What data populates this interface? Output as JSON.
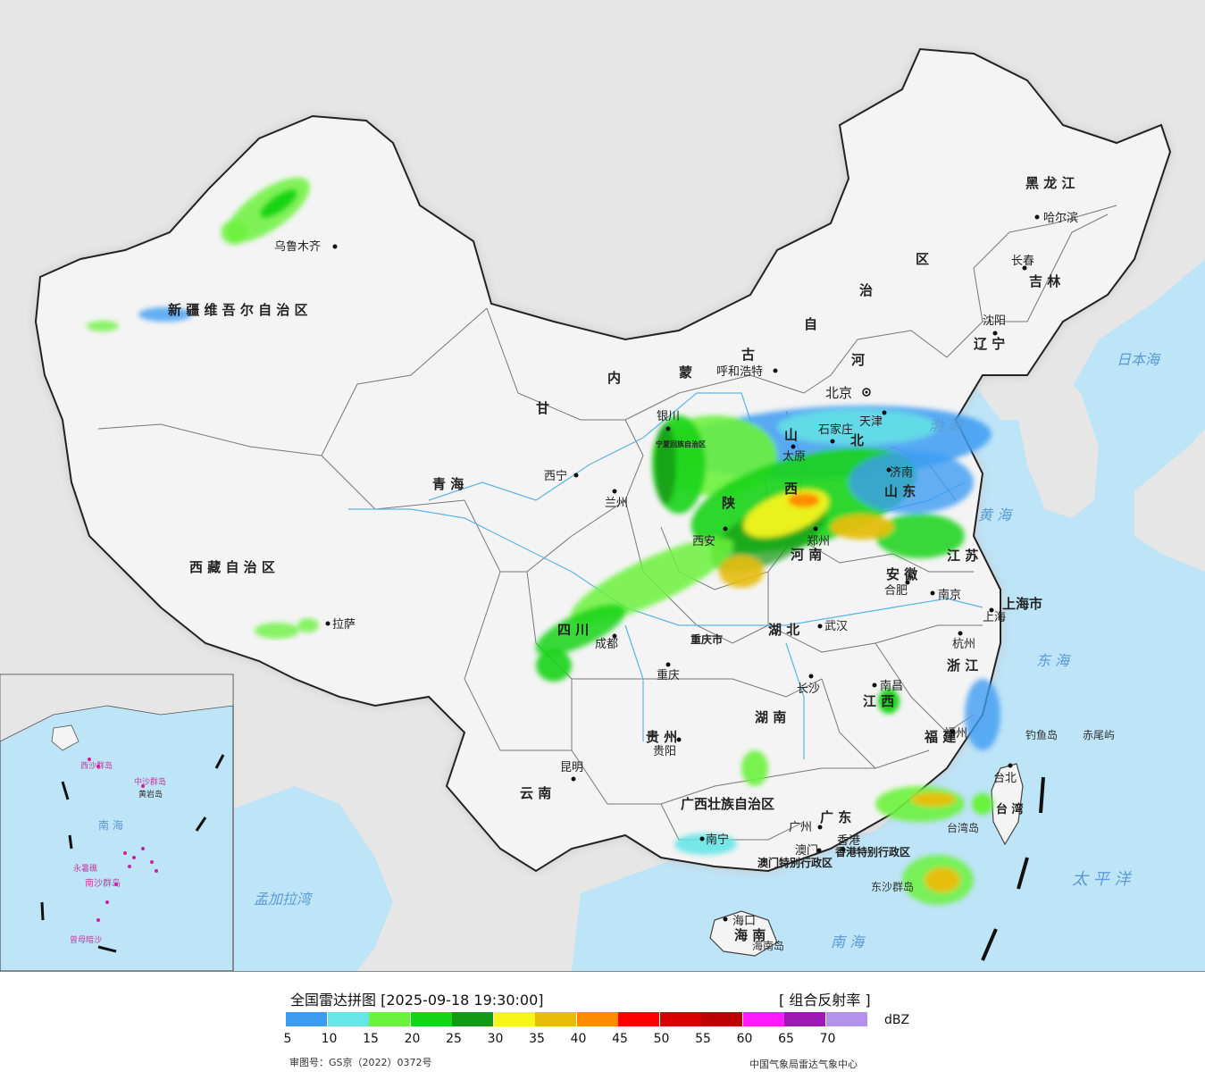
{
  "legend": {
    "title": "全国雷达拼图 [2025-09-18 19:30:00]",
    "product": "[ 组合反射率 ]",
    "unit": "dBZ",
    "colors": [
      "#3d9cf2",
      "#66e6e6",
      "#6bf23d",
      "#18d418",
      "#139913",
      "#f5f51a",
      "#e6be0a",
      "#ff8c00",
      "#ff0000",
      "#d90000",
      "#bf0000",
      "#ff1aff",
      "#9a1ab3",
      "#b491ed"
    ],
    "ticks": [
      "5",
      "10",
      "15",
      "20",
      "25",
      "30",
      "35",
      "40",
      "45",
      "50",
      "55",
      "60",
      "65",
      "70"
    ],
    "approval": "审图号：GS京（2022）0372号",
    "credit": "中国气象局雷达气象中心"
  },
  "regions": [
    {
      "name": "新疆维吾尔自治区",
      "label": "新  疆  维  吾  尔  自  治  区"
    },
    {
      "name": "西藏自治区",
      "label": "西  藏  自  治  区"
    },
    {
      "name": "青海",
      "label": "青          海"
    },
    {
      "name": "甘肃",
      "label": "甘"
    },
    {
      "name": "内蒙古自治区-内",
      "label": "内"
    },
    {
      "name": "内蒙古自治区-蒙",
      "label": "蒙"
    },
    {
      "name": "内蒙古自治区-古",
      "label": "古"
    },
    {
      "name": "内蒙古自治区-自",
      "label": "自"
    },
    {
      "name": "内蒙古自治区-治",
      "label": "治"
    },
    {
      "name": "内蒙古自治区-区",
      "label": "区"
    },
    {
      "name": "黑龙江",
      "label": "黑  龙  江"
    },
    {
      "name": "吉林",
      "label": "吉  林"
    },
    {
      "name": "辽宁",
      "label": "辽  宁"
    },
    {
      "name": "河北",
      "label": "河"
    },
    {
      "name": "北",
      "label": "北"
    },
    {
      "name": "山西-山",
      "label": "山"
    },
    {
      "name": "山西-西",
      "label": "西"
    },
    {
      "name": "山东",
      "label": "山  东"
    },
    {
      "name": "陕西",
      "label": "陕"
    },
    {
      "name": "河南",
      "label": "河    南"
    },
    {
      "name": "宁夏",
      "label": "宁夏回族自治区"
    },
    {
      "name": "四川",
      "label": "四    川"
    },
    {
      "name": "重庆市",
      "label": "重庆市"
    },
    {
      "name": "湖北",
      "label": "湖    北"
    },
    {
      "name": "安徽",
      "label": "安  徽"
    },
    {
      "name": "江苏",
      "label": "江  苏"
    },
    {
      "name": "上海市",
      "label": "上海市"
    },
    {
      "name": "浙江",
      "label": "浙  江"
    },
    {
      "name": "湖南",
      "label": "湖    南"
    },
    {
      "name": "江西",
      "label": "江    西"
    },
    {
      "name": "福建",
      "label": "福    建"
    },
    {
      "name": "贵州",
      "label": "贵  州"
    },
    {
      "name": "云南",
      "label": "云    南"
    },
    {
      "name": "广西壮族自治区",
      "label": "广西壮族自治区"
    },
    {
      "name": "广东",
      "label": "广    东"
    },
    {
      "name": "海南",
      "label": "海    南"
    },
    {
      "name": "台湾",
      "label": "台  湾"
    },
    {
      "name": "香港特别行政区",
      "label": "香港特别行政区"
    },
    {
      "name": "澳门特别行政区",
      "label": "澳门特别行政区"
    }
  ],
  "cities": [
    "乌鲁木齐",
    "拉萨",
    "西宁",
    "兰州",
    "银川",
    "呼和浩特",
    "北京",
    "天津",
    "石家庄",
    "太原",
    "济南",
    "西安",
    "郑州",
    "合肥",
    "南京",
    "上海",
    "杭州",
    "武汉",
    "成都",
    "重庆",
    "长沙",
    "南昌",
    "福州",
    "贵阳",
    "昆明",
    "南宁",
    "广州",
    "香港",
    "澳门",
    "海口",
    "台北",
    "哈尔滨",
    "长春",
    "沈阳"
  ],
  "seas": {
    "japan_sea": "日本海",
    "bohai": "渤  海",
    "yellow_sea": "黄  海",
    "east_sea": "东  海",
    "pacific": "太  平  洋",
    "south_sea": "南      海",
    "bengal": "孟加拉湾"
  },
  "islands": {
    "diaoyu": "钓鱼岛",
    "chiwei": "赤尾屿",
    "taiwan_island": "台湾岛",
    "hainan_island": "海南岛",
    "dongsha": "东沙群岛"
  },
  "inset": {
    "south_sea": "南  海",
    "zhongsha": "中沙群岛",
    "xisha": "西沙群岛",
    "nansha": "南沙群岛",
    "huangyan": "黄岩岛",
    "yongshu": "永暑礁",
    "zengmu": "曾母暗沙"
  }
}
